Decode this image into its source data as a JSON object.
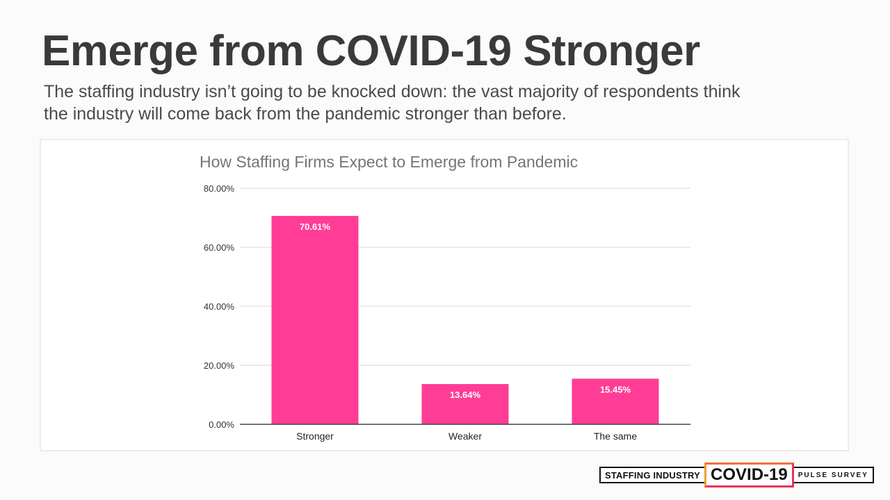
{
  "slide": {
    "title": "Emerge from COVID-19 Stronger",
    "subtitle": "The staffing industry isn’t going to be knocked down: the vast majority of respondents think the industry will come back from the pandemic stronger than before."
  },
  "footer": {
    "badge_left": "STAFFING INDUSTRY",
    "badge_mid": "COVID-19",
    "badge_right": "PULSE SURVEY"
  },
  "colors": {
    "bar": "#ff3d96",
    "grid": "#d9d9d9",
    "axis": "#444444",
    "title": "#757575",
    "bar_label": "#ffffff"
  },
  "chart_data": {
    "type": "bar",
    "title": "How Staffing Firms Expect to Emerge from Pandemic",
    "xlabel": "",
    "ylabel": "",
    "categories": [
      "Stronger",
      "Weaker",
      "The same"
    ],
    "values": [
      70.61,
      13.64,
      15.45
    ],
    "data_labels": [
      "70.61%",
      "13.64%",
      "15.45%"
    ],
    "ylim": [
      0,
      80
    ],
    "yticks": [
      0,
      20,
      40,
      60,
      80
    ],
    "ytick_labels": [
      "0.00%",
      "20.00%",
      "40.00%",
      "60.00%",
      "80.00%"
    ],
    "grid": true,
    "legend": "none"
  }
}
